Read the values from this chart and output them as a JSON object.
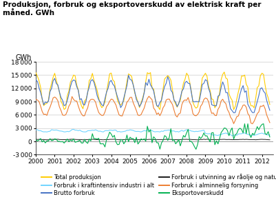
{
  "title": "Produksjon, forbruk og eksportoverskudd av elektrisk kraft per\nmåned. GWh",
  "ylabel": "GWh",
  "ylim": [
    -3000,
    18000
  ],
  "yticks": [
    -3000,
    0,
    3000,
    6000,
    9000,
    12000,
    15000,
    18000
  ],
  "xlim": [
    2000,
    2012.6
  ],
  "colors": {
    "total_prod": "#FFCC00",
    "brutto": "#4472C4",
    "alminnelig": "#ED7D31",
    "kraftintensiv": "#70D4FF",
    "utvinning": "#1A1A1A",
    "eksport": "#00B050"
  },
  "legend": [
    "Total produksjon",
    "Brutto forbruk",
    "Forbruk i alminnelig forsyning",
    "Forbruk i kraftintensiv industri i alt",
    "Forbruk i utvinning av råolje og naturgass",
    "Eksportoverskudd"
  ]
}
